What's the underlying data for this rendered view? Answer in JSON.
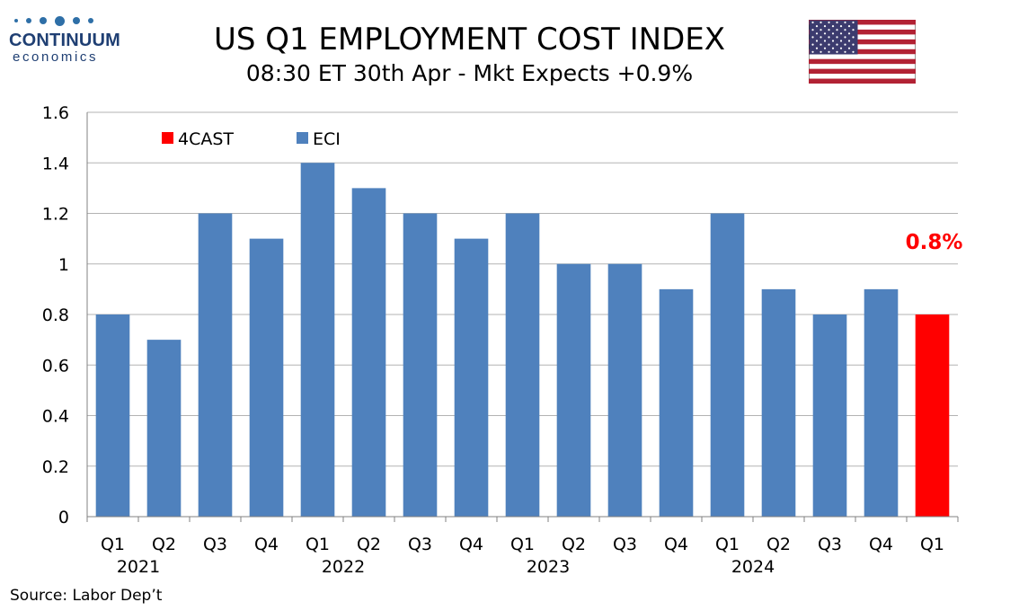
{
  "logo": {
    "name": "CONTINUUM",
    "sub": "economics"
  },
  "header": {
    "title": "US Q1 EMPLOYMENT COST INDEX",
    "subtitle": "08:30 ET 30th Apr - Mkt Expects +0.9%"
  },
  "flag": {
    "icon": "us-flag-icon"
  },
  "source": "Source: Labor Dep’t",
  "colors": {
    "eci": "#4f81bd",
    "forecast": "#ff0000",
    "grid": "#b3b3b3",
    "axis": "#808080"
  },
  "chart_data": {
    "type": "bar",
    "ylim": [
      0,
      1.6
    ],
    "yticks": [
      "0",
      "0.2",
      "0.4",
      "0.6",
      "0.8",
      "1",
      "1.2",
      "1.4",
      "1.6"
    ],
    "grid": true,
    "legend_position": "top-left",
    "categories": [
      "Q1",
      "Q2",
      "Q3",
      "Q4",
      "Q1",
      "Q2",
      "Q3",
      "Q4",
      "Q1",
      "Q2",
      "Q3",
      "Q4",
      "Q1",
      "Q2",
      "Q3",
      "Q4",
      "Q1"
    ],
    "year_labels": [
      {
        "label": "2021",
        "after_category_index": 1
      },
      {
        "label": "2022",
        "after_category_index": 5
      },
      {
        "label": "2023",
        "after_category_index": 9
      },
      {
        "label": "2024",
        "after_category_index": 13
      }
    ],
    "series": [
      {
        "name": "4CAST",
        "color": "#ff0000",
        "values": [
          null,
          null,
          null,
          null,
          null,
          null,
          null,
          null,
          null,
          null,
          null,
          null,
          null,
          null,
          null,
          null,
          0.8
        ]
      },
      {
        "name": "ECI",
        "color": "#4f81bd",
        "values": [
          0.8,
          0.7,
          1.2,
          1.1,
          1.4,
          1.3,
          1.2,
          1.1,
          1.2,
          1.0,
          1.0,
          0.9,
          1.2,
          0.9,
          0.8,
          0.9,
          null
        ]
      }
    ],
    "annotations": [
      {
        "text": "0.8%",
        "color": "#ff0000",
        "category_index": 16
      }
    ]
  }
}
